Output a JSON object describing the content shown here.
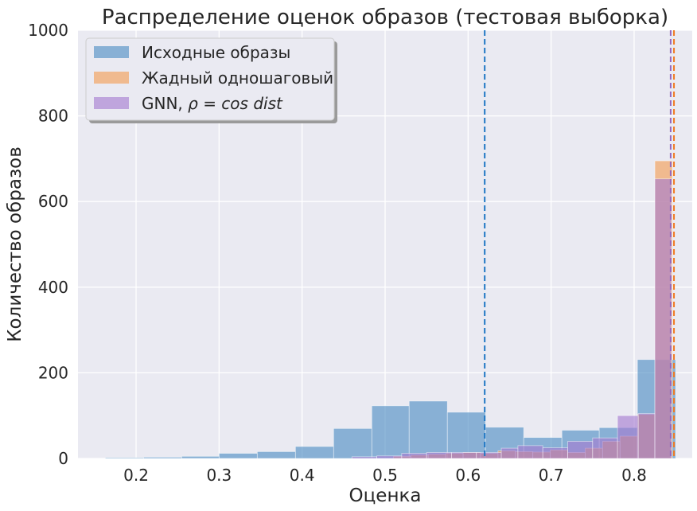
{
  "chart_data": {
    "type": "bar",
    "title": "Распределение оценок образов (тестовая выборка)",
    "xlabel": "Оценка",
    "ylabel": "Количество образов",
    "xlim": [
      0.13,
      0.87
    ],
    "ylim": [
      0,
      1000
    ],
    "xticks": [
      0.2,
      0.3,
      0.4,
      0.5,
      0.6,
      0.7,
      0.8
    ],
    "yticks": [
      0,
      200,
      400,
      600,
      800,
      1000
    ],
    "grid": true,
    "legend_position": "top-left",
    "series": [
      {
        "name": "Исходные образы",
        "color": "#4c8dc4",
        "bins": [
          {
            "x0": 0.163,
            "x1": 0.209,
            "y": 2
          },
          {
            "x0": 0.209,
            "x1": 0.255,
            "y": 3
          },
          {
            "x0": 0.255,
            "x1": 0.3,
            "y": 5
          },
          {
            "x0": 0.3,
            "x1": 0.346,
            "y": 12
          },
          {
            "x0": 0.346,
            "x1": 0.392,
            "y": 16
          },
          {
            "x0": 0.392,
            "x1": 0.438,
            "y": 28
          },
          {
            "x0": 0.438,
            "x1": 0.484,
            "y": 70
          },
          {
            "x0": 0.484,
            "x1": 0.529,
            "y": 123
          },
          {
            "x0": 0.529,
            "x1": 0.575,
            "y": 134
          },
          {
            "x0": 0.575,
            "x1": 0.621,
            "y": 108
          },
          {
            "x0": 0.621,
            "x1": 0.667,
            "y": 73
          },
          {
            "x0": 0.667,
            "x1": 0.713,
            "y": 49
          },
          {
            "x0": 0.713,
            "x1": 0.758,
            "y": 66
          },
          {
            "x0": 0.758,
            "x1": 0.804,
            "y": 72
          },
          {
            "x0": 0.804,
            "x1": 0.85,
            "y": 231
          }
        ],
        "mean": 0.62
      },
      {
        "name": "Жадный одношаговый",
        "color": "#f39c52",
        "bins": [
          {
            "x0": 0.51,
            "x1": 0.531,
            "y": 5
          },
          {
            "x0": 0.531,
            "x1": 0.552,
            "y": 8
          },
          {
            "x0": 0.552,
            "x1": 0.573,
            "y": 10
          },
          {
            "x0": 0.573,
            "x1": 0.594,
            "y": 12
          },
          {
            "x0": 0.594,
            "x1": 0.615,
            "y": 14
          },
          {
            "x0": 0.615,
            "x1": 0.636,
            "y": 12
          },
          {
            "x0": 0.636,
            "x1": 0.657,
            "y": 18
          },
          {
            "x0": 0.657,
            "x1": 0.678,
            "y": 16
          },
          {
            "x0": 0.678,
            "x1": 0.699,
            "y": 15
          },
          {
            "x0": 0.699,
            "x1": 0.72,
            "y": 20
          },
          {
            "x0": 0.72,
            "x1": 0.741,
            "y": 14
          },
          {
            "x0": 0.741,
            "x1": 0.762,
            "y": 24
          },
          {
            "x0": 0.762,
            "x1": 0.783,
            "y": 40
          },
          {
            "x0": 0.783,
            "x1": 0.804,
            "y": 52
          },
          {
            "x0": 0.804,
            "x1": 0.825,
            "y": 103
          },
          {
            "x0": 0.825,
            "x1": 0.846,
            "y": 695
          }
        ],
        "mean": 0.848
      },
      {
        "name": "GNN, ρ = cos dist",
        "color": "#a57ad0",
        "bins": [
          {
            "x0": 0.46,
            "x1": 0.49,
            "y": 4
          },
          {
            "x0": 0.49,
            "x1": 0.52,
            "y": 6
          },
          {
            "x0": 0.52,
            "x1": 0.55,
            "y": 12
          },
          {
            "x0": 0.55,
            "x1": 0.58,
            "y": 14
          },
          {
            "x0": 0.58,
            "x1": 0.61,
            "y": 14
          },
          {
            "x0": 0.61,
            "x1": 0.64,
            "y": 14
          },
          {
            "x0": 0.64,
            "x1": 0.66,
            "y": 24
          },
          {
            "x0": 0.66,
            "x1": 0.69,
            "y": 30
          },
          {
            "x0": 0.69,
            "x1": 0.72,
            "y": 25
          },
          {
            "x0": 0.72,
            "x1": 0.75,
            "y": 40
          },
          {
            "x0": 0.75,
            "x1": 0.78,
            "y": 48
          },
          {
            "x0": 0.78,
            "x1": 0.805,
            "y": 100
          },
          {
            "x0": 0.805,
            "x1": 0.825,
            "y": 105
          },
          {
            "x0": 0.825,
            "x1": 0.845,
            "y": 653
          }
        ],
        "mean": 0.844
      }
    ]
  },
  "legend": {
    "items": [
      {
        "label": "Исходные образы"
      },
      {
        "label": "Жадный одношаговый"
      },
      {
        "label_prefix": "GNN, ",
        "label_math": "ρ = cos dist"
      }
    ]
  }
}
